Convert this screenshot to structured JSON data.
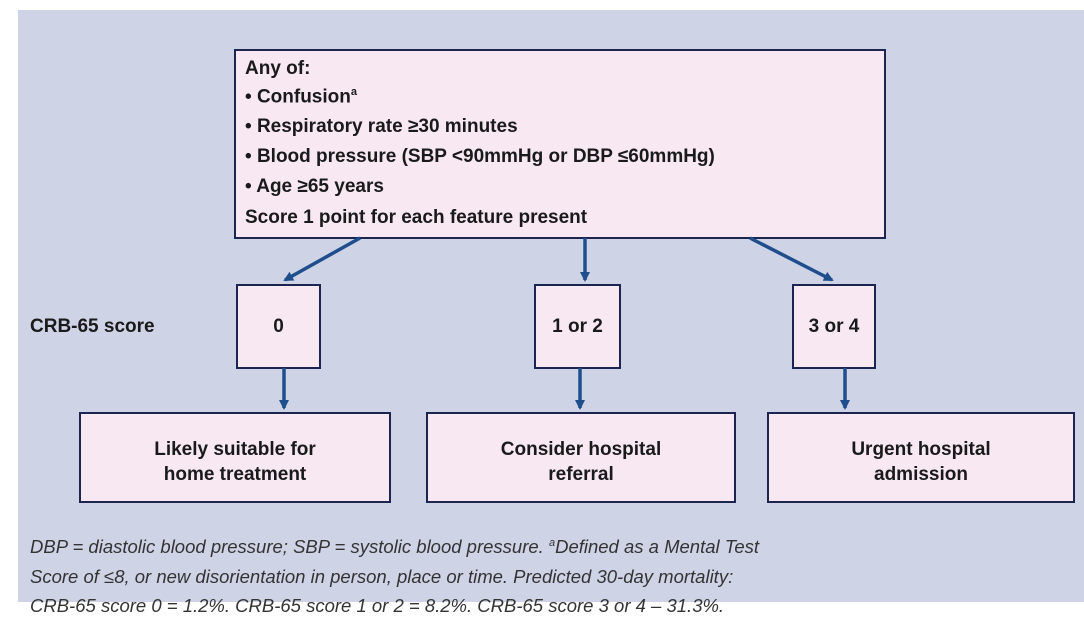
{
  "criteria": {
    "heading": "Any of:",
    "items": [
      {
        "text": "Confusion",
        "marker": "a"
      },
      {
        "text": "Respiratory rate ≥30 minutes"
      },
      {
        "text": "Blood pressure (SBP <90mmHg or DBP ≤60mmHg)"
      },
      {
        "text": "Age ≥65 years"
      }
    ],
    "scoring": "Score 1 point for each feature present"
  },
  "score_label": "CRB-65 score",
  "scores": [
    "0",
    "1 or 2",
    "3 or 4"
  ],
  "outcomes": [
    [
      "Likely suitable for",
      "home treatment"
    ],
    [
      "Consider hospital",
      "referral"
    ],
    [
      "Urgent hospital",
      "admission"
    ]
  ],
  "footnote": {
    "abbreviations": "DBP = diastolic blood pressure; SBP = systolic blood pressure.",
    "marker": "a",
    "lines": [
      "Defined as a Mental Test",
      "Score of ≤8, or new disorientation in person, place or time. Predicted 30-day mortality:",
      "CRB-65 score 0 = 1.2%. CRB-65 score 1 or 2 = 8.2%. CRB-65 score 3 or 4 – 31.3%."
    ]
  }
}
